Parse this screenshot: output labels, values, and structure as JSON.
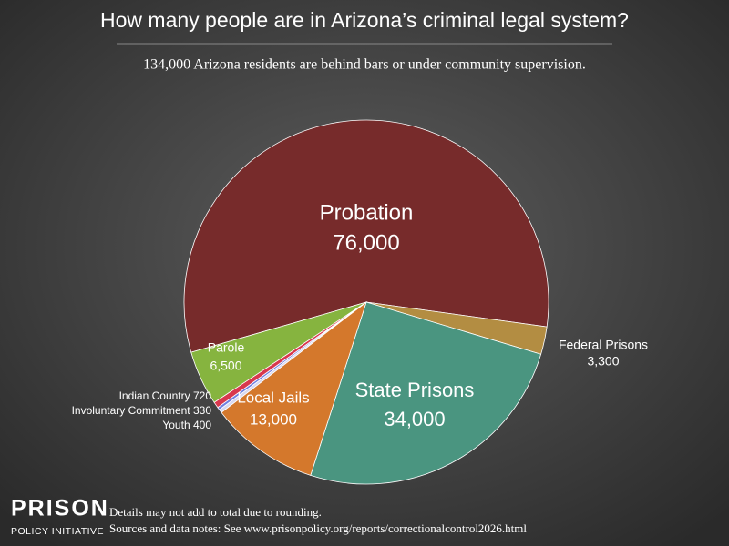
{
  "chart_data": {
    "type": "pie",
    "title": "How many people are in Arizona’s criminal legal system?",
    "subtitle": "134,000 Arizona residents are behind bars or under community supervision.",
    "categories": [
      "Probation",
      "Federal Prisons",
      "State Prisons",
      "Local Jails",
      "Youth",
      "Involuntary Commitment",
      "Indian Country",
      "Parole"
    ],
    "values": [
      76000,
      3300,
      34000,
      13000,
      400,
      330,
      720,
      6500
    ],
    "value_labels": [
      "76,000",
      "3,300",
      "34,000",
      "13,000",
      "400",
      "330",
      "720",
      "6,500"
    ],
    "colors": [
      "#772b2b",
      "#b38d42",
      "#4a9580",
      "#d4782c",
      "#d8d8f0",
      "#6f7fe0",
      "#d8384e",
      "#86b43f"
    ]
  },
  "footer": {
    "logo_top": "PRISON",
    "logo_bottom": "POLICY INITIATIVE",
    "notes": [
      "Details may not add to total due to rounding.",
      "Sources and data notes: See www.prisonpolicy.org/reports/correctionalcontrol2026.html"
    ]
  }
}
